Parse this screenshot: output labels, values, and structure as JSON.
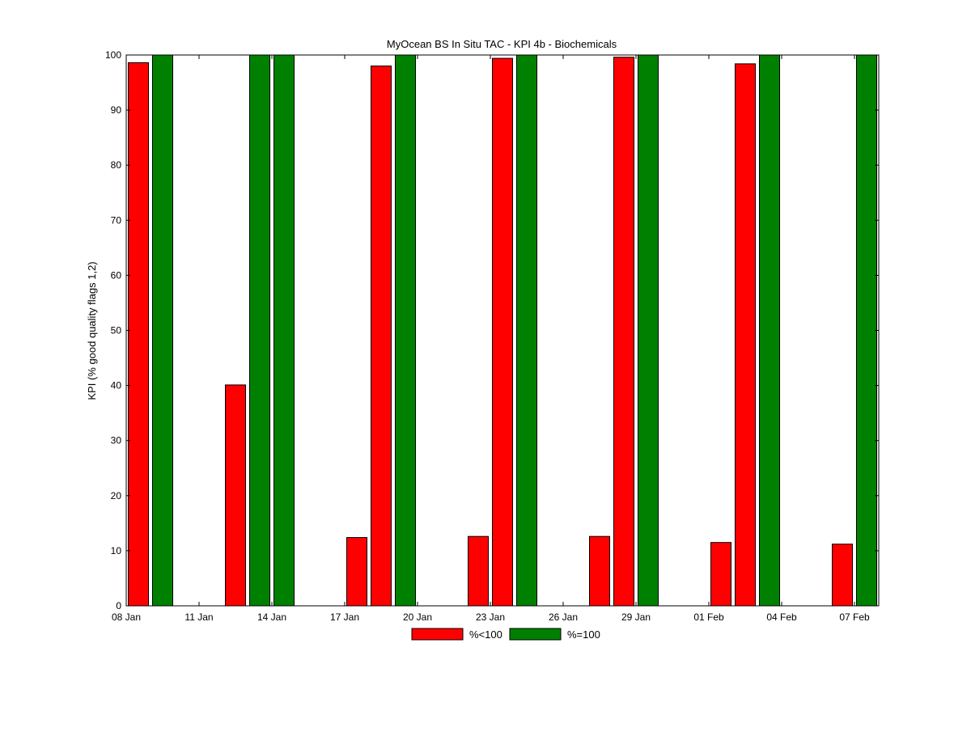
{
  "chart_data": {
    "type": "bar",
    "title": "MyOcean  BS In Situ TAC - KPI 4b - Biochemicals",
    "xlabel": "",
    "ylabel": "KPI (% good quality flags 1,2)",
    "ylim": [
      0,
      100
    ],
    "yticks": [
      "0",
      "10",
      "20",
      "30",
      "40",
      "50",
      "60",
      "70",
      "80",
      "90",
      "100"
    ],
    "xlim": [
      "2014-01-08",
      "2014-02-08"
    ],
    "xticks": [
      {
        "date": "2014-01-08",
        "label": "08 Jan"
      },
      {
        "date": "2014-01-11",
        "label": "11 Jan"
      },
      {
        "date": "2014-01-14",
        "label": "14 Jan"
      },
      {
        "date": "2014-01-17",
        "label": "17 Jan"
      },
      {
        "date": "2014-01-20",
        "label": "20 Jan"
      },
      {
        "date": "2014-01-23",
        "label": "23 Jan"
      },
      {
        "date": "2014-01-26",
        "label": "26 Jan"
      },
      {
        "date": "2014-01-29",
        "label": "29 Jan"
      },
      {
        "date": "2014-02-01",
        "label": "01 Feb"
      },
      {
        "date": "2014-02-04",
        "label": "04 Feb"
      },
      {
        "date": "2014-02-07",
        "label": "07 Feb"
      }
    ],
    "grid": false,
    "legend_position": "bottom-center",
    "series": [
      {
        "name": "%<100",
        "color": "#ff0000",
        "points": [
          {
            "date": "2014-01-08",
            "value": 98.6
          },
          {
            "date": "2014-01-12",
            "value": 40.1
          },
          {
            "date": "2014-01-17",
            "value": 12.4
          },
          {
            "date": "2014-01-18",
            "value": 98.0
          },
          {
            "date": "2014-01-22",
            "value": 12.6
          },
          {
            "date": "2014-01-23",
            "value": 99.4
          },
          {
            "date": "2014-01-27",
            "value": 12.6
          },
          {
            "date": "2014-01-28",
            "value": 99.6
          },
          {
            "date": "2014-02-01",
            "value": 11.5
          },
          {
            "date": "2014-02-02",
            "value": 98.4
          },
          {
            "date": "2014-02-06",
            "value": 11.2
          }
        ]
      },
      {
        "name": "%=100",
        "color": "#008000",
        "points": [
          {
            "date": "2014-01-09",
            "value": 100
          },
          {
            "date": "2014-01-13",
            "value": 100
          },
          {
            "date": "2014-01-14",
            "value": 100
          },
          {
            "date": "2014-01-19",
            "value": 100
          },
          {
            "date": "2014-01-24",
            "value": 100
          },
          {
            "date": "2014-01-29",
            "value": 100
          },
          {
            "date": "2014-02-03",
            "value": 100
          },
          {
            "date": "2014-02-07",
            "value": 100
          }
        ]
      }
    ]
  }
}
